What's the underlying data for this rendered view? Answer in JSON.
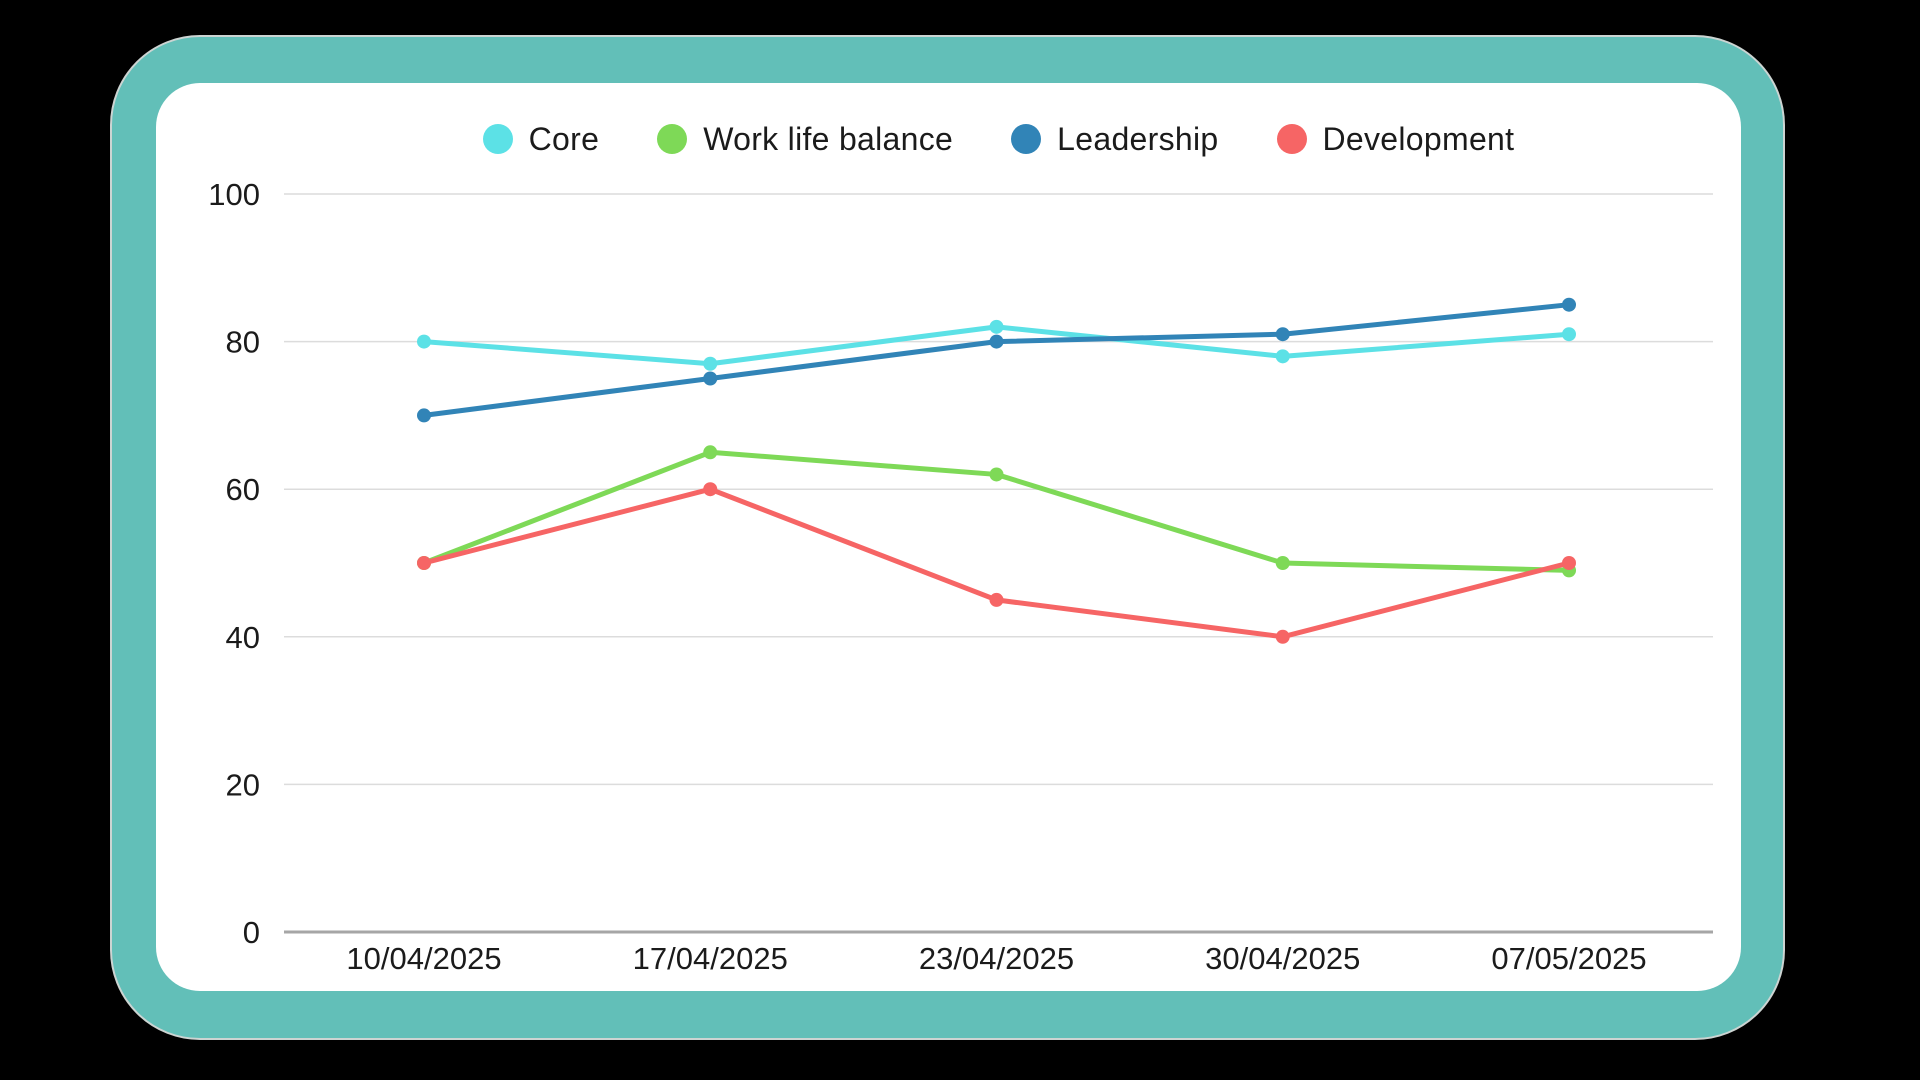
{
  "theme": {
    "page_background": "#000000",
    "frame_color": "#62BFB8",
    "card_color": "#ffffff",
    "text_color": "#1b1b1b",
    "gridline_color": "#dcdcdc",
    "axis_line_color": "#a6a6a6"
  },
  "chart_data": {
    "type": "line",
    "title": "",
    "xlabel": "",
    "ylabel": "",
    "categories": [
      "10/04/2025",
      "17/04/2025",
      "23/04/2025",
      "30/04/2025",
      "07/05/2025"
    ],
    "series": [
      {
        "name": "Core",
        "color": "#5CE1E6",
        "values": [
          80,
          77,
          82,
          78,
          81
        ]
      },
      {
        "name": "Work life balance",
        "color": "#7ED957",
        "values": [
          50,
          65,
          62,
          50,
          49
        ]
      },
      {
        "name": "Leadership",
        "color": "#3184B7",
        "values": [
          70,
          75,
          80,
          81,
          85
        ]
      },
      {
        "name": "Development",
        "color": "#F66565",
        "values": [
          50,
          60,
          45,
          40,
          50
        ]
      }
    ],
    "ylim": [
      0,
      100
    ],
    "y_ticks": [
      0,
      20,
      40,
      60,
      80,
      100
    ],
    "grid": "horizontal-only",
    "legend_position": "top-center",
    "marker": "filled-circle"
  }
}
